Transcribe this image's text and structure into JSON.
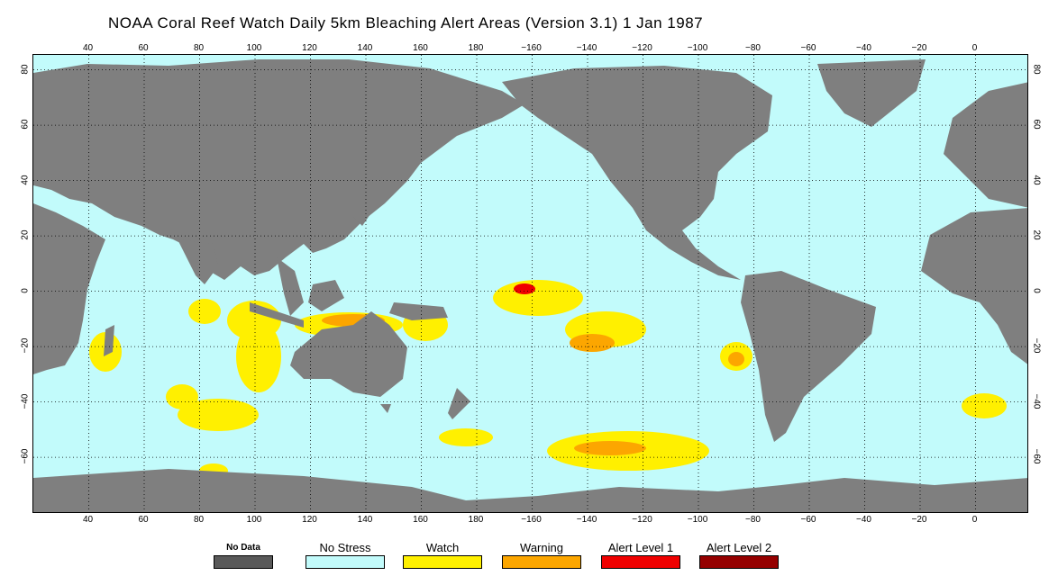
{
  "title": "NOAA Coral Reef Watch Daily 5km Bleaching Alert Areas (Version 3.1)  1 Jan 1987",
  "colors": {
    "ocean": "#c2fbfb",
    "land": "#7f7f7f",
    "no_data": "#595959",
    "no_stress": "#c2fbfb",
    "watch": "#fff000",
    "warning": "#fca600",
    "alert1": "#ef0000",
    "alert2": "#950000",
    "grid": "#000000"
  },
  "lon_ticks_top": [
    "40",
    "60",
    "80",
    "100",
    "120",
    "140",
    "160",
    "180",
    "−160",
    "−140",
    "−120",
    "−100",
    "−80",
    "−60",
    "−40",
    "−20",
    "0"
  ],
  "lon_ticks_bottom": [
    "40",
    "60",
    "80",
    "100",
    "120",
    "140",
    "160",
    "180",
    "−160",
    "−140",
    "−120",
    "−100",
    "−80",
    "−60",
    "−40",
    "−20",
    "0"
  ],
  "lat_ticks_left": [
    "80",
    "60",
    "40",
    "20",
    "0",
    "−20",
    "−40",
    "−60"
  ],
  "lat_ticks_right": [
    "80",
    "60",
    "40",
    "20",
    "0",
    "−20",
    "−40",
    "−60"
  ],
  "legend": [
    {
      "label": "No Data",
      "color": "#595959",
      "small": true
    },
    {
      "label": "No Stress",
      "color": "#c2fbfb",
      "small": false
    },
    {
      "label": "Watch",
      "color": "#fff000",
      "small": false
    },
    {
      "label": "Warning",
      "color": "#fca600",
      "small": false
    },
    {
      "label": "Alert Level 1",
      "color": "#ef0000",
      "small": false
    },
    {
      "label": "Alert Level 2",
      "color": "#950000",
      "small": false
    }
  ]
}
